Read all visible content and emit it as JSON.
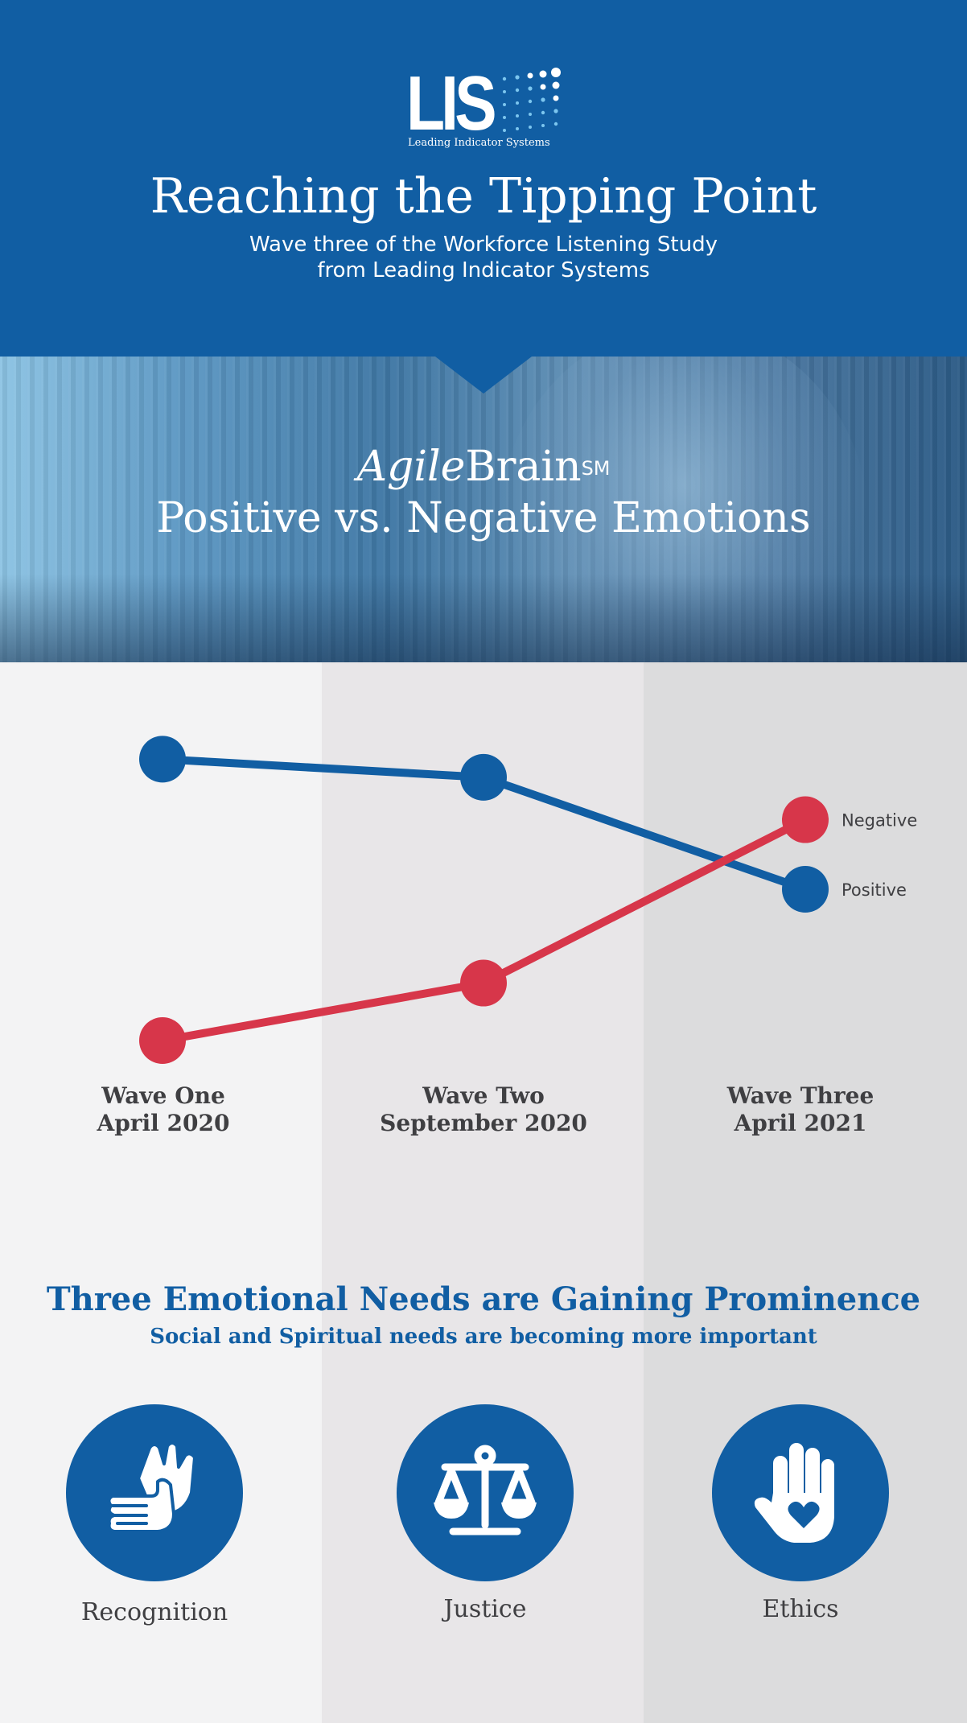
{
  "header": {
    "logo_letters": "LIS",
    "logo_tagline": "Leading Indicator Systems",
    "title": "Reaching the Tipping Point",
    "subtitle": "Wave three of the Workforce Listening Study from Leading Indicator Systems"
  },
  "banner": {
    "brand_italic": "Agile",
    "brand_regular": "Brain",
    "brand_mark": "SM",
    "title": "Positive vs. Negative Emotions"
  },
  "colors": {
    "brand_blue": "#115ea3",
    "positive": "#115ea3",
    "negative": "#d7364a",
    "label_text": "#3f3f42"
  },
  "chart_data": {
    "type": "line",
    "categories": [
      "Wave One April 2020",
      "Wave Two September 2020",
      "Wave Three April 2021"
    ],
    "category_lines": [
      [
        "Wave One",
        "April 2020"
      ],
      [
        "Wave Two",
        "September 2020"
      ],
      [
        "Wave Three",
        "April 2021"
      ]
    ],
    "series": [
      {
        "name": "Positive",
        "color": "#115ea3",
        "values": [
          0.93,
          0.87,
          0.5
        ]
      },
      {
        "name": "Negative",
        "color": "#d7364a",
        "values": [
          0.0,
          0.19,
          0.73
        ]
      }
    ],
    "ylim": [
      0,
      1
    ],
    "grid": false,
    "legend": "end-of-line labels",
    "title": "",
    "xlabel": "",
    "ylabel": ""
  },
  "needs": {
    "title": "Three Emotional Needs are Gaining Prominence",
    "subtitle": "Social and Spiritual needs are becoming more important",
    "items": [
      {
        "label": "Recognition",
        "icon": "clapping-hands-icon"
      },
      {
        "label": "Justice",
        "icon": "scales-icon"
      },
      {
        "label": "Ethics",
        "icon": "hand-heart-icon"
      }
    ]
  }
}
